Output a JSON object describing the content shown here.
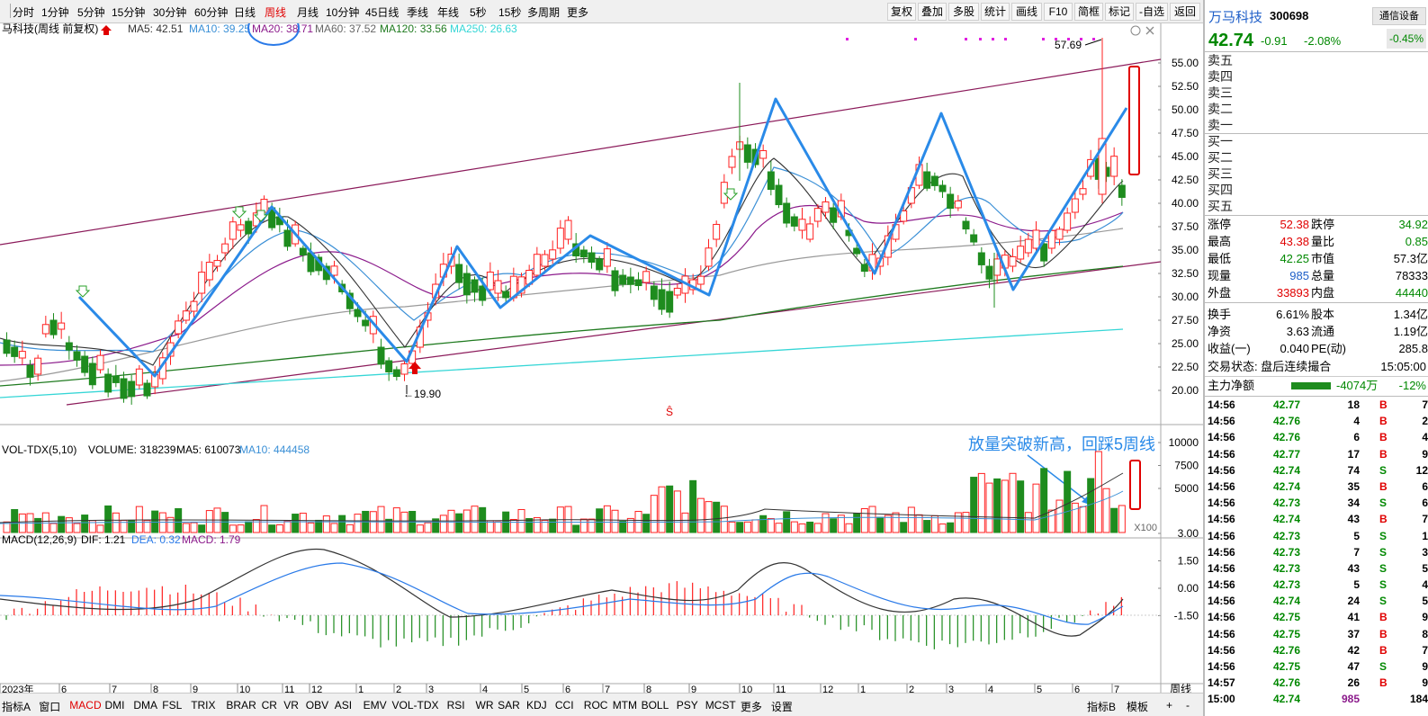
{
  "toolbar": {
    "periods": [
      "分时",
      "1分钟",
      "5分钟",
      "15分钟",
      "30分钟",
      "60分钟",
      "日线",
      "周线",
      "月线",
      "10分钟",
      "45日线",
      "季线",
      "年线",
      "5秒",
      "15秒",
      "多周期",
      "更多"
    ],
    "active_period": "周线",
    "right_buttons": [
      "复权",
      "叠加",
      "多股",
      "统计",
      "画线",
      "F10",
      "简框",
      "标记",
      "-自选",
      "返回"
    ]
  },
  "chart_header": {
    "title": "马科技(周线 前复权)",
    "ma5": "MA5: 42.51",
    "ma10": "MA10: 39.25",
    "ma20": "MA20: 38.71",
    "ma60": "MA60: 37.52",
    "ma120": "MA120: 33.56",
    "ma250": "MA250: 26.63"
  },
  "colors": {
    "up": "#ff2020",
    "down": "#1e8c1e",
    "ma5": "#333333",
    "ma10": "#3a8fd6",
    "ma20": "#8b1a8b",
    "ma60": "#999999",
    "ma120": "#1f7a1f",
    "ma250": "#35d6d6",
    "channel": "#8b1a5a",
    "wave": "#2a8ae8"
  },
  "price_axis": [
    "55.00",
    "52.50",
    "50.00",
    "47.50",
    "45.00",
    "42.50",
    "40.00",
    "37.50",
    "35.00",
    "32.50",
    "30.00",
    "27.50",
    "25.00",
    "22.50",
    "20.00"
  ],
  "price_annotations": {
    "high": "57.69",
    "low": "19.90"
  },
  "vol_header": {
    "title": "VOL-TDX(5,10)",
    "volume": "VOLUME: 318239",
    "ma5": "MA5: 610073",
    "ma10": "MA10: 444458",
    "annotation": "放量突破新高，回踩5周线",
    "unit": "X100"
  },
  "vol_axis": [
    "10000",
    "7500",
    "5000"
  ],
  "macd_header": {
    "title": "MACD(12,26,9)",
    "dif": "DIF: 1.21",
    "dea": "DEA: 0.32",
    "macd": "MACD: 1.79"
  },
  "macd_axis": [
    "3.00",
    "1.50",
    "0.00",
    "-1.50"
  ],
  "x_axis": [
    "2023年",
    "6",
    "7",
    "8",
    "9",
    "10",
    "11",
    "12",
    "1",
    "2",
    "3",
    "4",
    "5",
    "6",
    "7",
    "8",
    "9",
    "10",
    "11",
    "12",
    "1",
    "2",
    "3",
    "4",
    "5",
    "6",
    "7"
  ],
  "period_label": "周线",
  "bottom_tabs": [
    "指标A",
    "窗口",
    "MACD",
    "DMI",
    "DMA",
    "FSL",
    "TRIX",
    "BRAR",
    "CR",
    "VR",
    "OBV",
    "ASI",
    "EMV",
    "VOL-TDX",
    "RSI",
    "WR",
    "SAR",
    "KDJ",
    "CCI",
    "ROC",
    "MTM",
    "BOLL",
    "PSY",
    "MCST",
    "更多",
    "设置"
  ],
  "bottom_right": [
    "指标B",
    "模板",
    "+",
    "-"
  ],
  "quote": {
    "name": "万马科技",
    "code": "300698",
    "broker_btn": "通信设备",
    "price": "42.74",
    "change": "-0.91",
    "change_pct": "-2.08%",
    "box_pct": "-0.45%"
  },
  "order_book": [
    "卖五",
    "卖四",
    "卖三",
    "卖二",
    "卖一",
    "买一",
    "买二",
    "买三",
    "买四",
    "买五"
  ],
  "stats": [
    {
      "l1": "涨停",
      "v1": "52.38",
      "c1": "#e00000",
      "l2": "跌停",
      "v2": "34.92",
      "c2": "#008800"
    },
    {
      "l1": "最高",
      "v1": "43.38",
      "c1": "#e00000",
      "l2": "量比",
      "v2": "0.85",
      "c2": "#008800"
    },
    {
      "l1": "最低",
      "v1": "42.25",
      "c1": "#008800",
      "l2": "市值",
      "v2": "57.3亿",
      "c2": "#000000"
    },
    {
      "l1": "现量",
      "v1": "985",
      "c1": "#1f5fc8",
      "l2": "总量",
      "v2": "78333",
      "c2": "#000000"
    },
    {
      "l1": "外盘",
      "v1": "33893",
      "c1": "#e00000",
      "l2": "内盘",
      "v2": "44440",
      "c2": "#008800"
    },
    {
      "l1": "换手",
      "v1": "6.61%",
      "c1": "#000000",
      "l2": "股本",
      "v2": "1.34亿",
      "c2": "#000000"
    },
    {
      "l1": "净资",
      "v1": "3.63",
      "c1": "#000000",
      "l2": "流通",
      "v2": "1.19亿",
      "c2": "#000000"
    },
    {
      "l1": "收益(一)",
      "v1": "0.040",
      "c1": "#000000",
      "l2": "PE(动)",
      "v2": "285.8",
      "c2": "#000000"
    }
  ],
  "status": {
    "text": "交易状态: 盘后连续撮合",
    "time": "15:05:00"
  },
  "main_flow": {
    "label": "主力净额",
    "value": "-4074万",
    "pct": "-12%"
  },
  "trades": [
    {
      "t": "14:56",
      "p": "42.77",
      "v": "18",
      "s": "B",
      "n": "7"
    },
    {
      "t": "14:56",
      "p": "42.76",
      "v": "4",
      "s": "B",
      "n": "2"
    },
    {
      "t": "14:56",
      "p": "42.76",
      "v": "6",
      "s": "B",
      "n": "4"
    },
    {
      "t": "14:56",
      "p": "42.77",
      "v": "17",
      "s": "B",
      "n": "9"
    },
    {
      "t": "14:56",
      "p": "42.74",
      "v": "74",
      "s": "S",
      "n": "12"
    },
    {
      "t": "14:56",
      "p": "42.74",
      "v": "35",
      "s": "B",
      "n": "6"
    },
    {
      "t": "14:56",
      "p": "42.73",
      "v": "34",
      "s": "S",
      "n": "6"
    },
    {
      "t": "14:56",
      "p": "42.74",
      "v": "43",
      "s": "B",
      "n": "7"
    },
    {
      "t": "14:56",
      "p": "42.73",
      "v": "5",
      "s": "S",
      "n": "1"
    },
    {
      "t": "14:56",
      "p": "42.73",
      "v": "7",
      "s": "S",
      "n": "3"
    },
    {
      "t": "14:56",
      "p": "42.73",
      "v": "43",
      "s": "S",
      "n": "5"
    },
    {
      "t": "14:56",
      "p": "42.73",
      "v": "5",
      "s": "S",
      "n": "4"
    },
    {
      "t": "14:56",
      "p": "42.74",
      "v": "24",
      "s": "S",
      "n": "5"
    },
    {
      "t": "14:56",
      "p": "42.75",
      "v": "41",
      "s": "B",
      "n": "9"
    },
    {
      "t": "14:56",
      "p": "42.75",
      "v": "37",
      "s": "B",
      "n": "8"
    },
    {
      "t": "14:56",
      "p": "42.76",
      "v": "42",
      "s": "B",
      "n": "7"
    },
    {
      "t": "14:56",
      "p": "42.75",
      "v": "47",
      "s": "S",
      "n": "9"
    },
    {
      "t": "14:57",
      "p": "42.76",
      "v": "26",
      "s": "B",
      "n": "9"
    },
    {
      "t": "15:00",
      "p": "42.74",
      "v": "985",
      "s": "",
      "n": "184"
    }
  ]
}
